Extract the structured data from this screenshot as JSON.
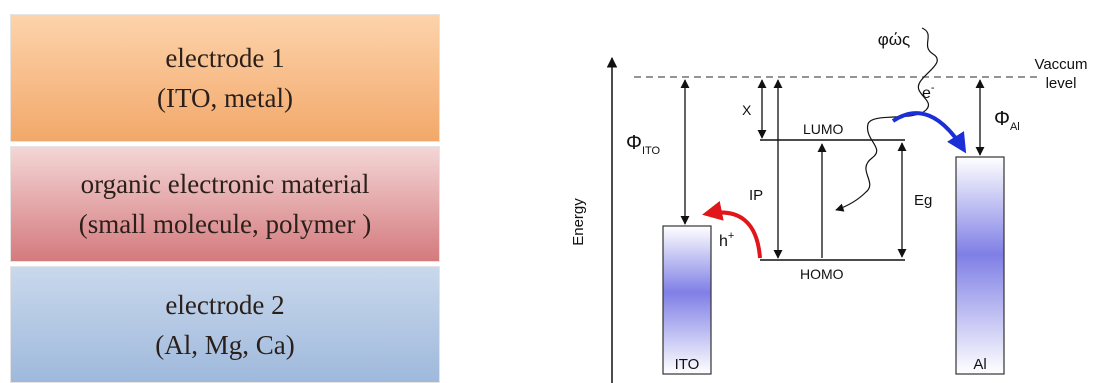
{
  "layers": {
    "top": {
      "line1": "electrode 1",
      "line2": "(ITO, metal)",
      "color_from": "#fdd3ab",
      "color_to": "#f2a86a"
    },
    "middle": {
      "line1": "organic electronic material",
      "line2": "(small molecule, polymer )",
      "color_from": "#f4d6d6",
      "color_to": "#d47a7d"
    },
    "bottom": {
      "line1": "electrode 2",
      "line2": "(Al, Mg, Ca)",
      "color_from": "#c9d8ec",
      "color_to": "#9fb9dc"
    }
  },
  "energy_diagram": {
    "axis_label": "Energy",
    "vacuum_label_1": "Vaccum",
    "vacuum_label_2": "level",
    "light_label": "φώς",
    "phi_ito": {
      "symbol": "Φ",
      "sub": "ITO"
    },
    "phi_al": {
      "symbol": "Φ",
      "sub": "Al"
    },
    "chi": "X",
    "ip": "IP",
    "eg": "Eg",
    "lumo": "LUMO",
    "homo": "HOMO",
    "hole": {
      "symbol": "h",
      "sup": "+"
    },
    "electron": {
      "symbol": "e",
      "sup": "-"
    },
    "ito_label": "ITO",
    "al_label": "Al",
    "hole_arrow_color": "#e0161b",
    "electron_arrow_color": "#1c2fd6",
    "bar_color_mid": "#7f7fe6"
  }
}
